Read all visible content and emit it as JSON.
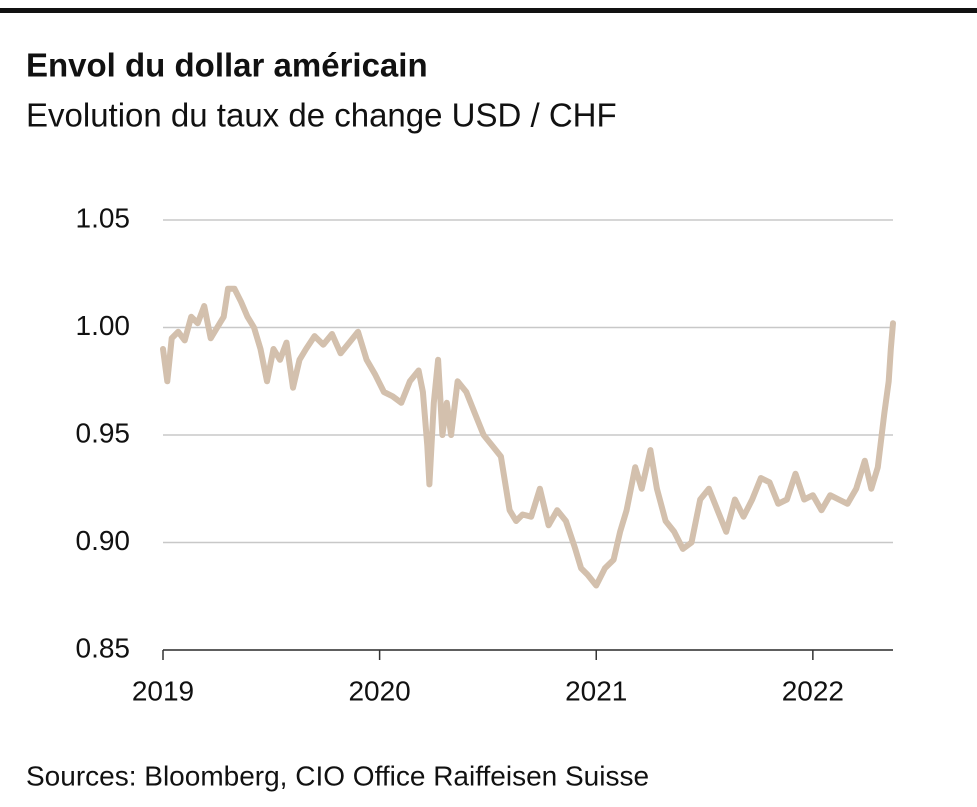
{
  "chart_data": {
    "type": "line",
    "title": "Envol du dollar américain",
    "subtitle": "Evolution du taux de change USD / CHF",
    "source": "Sources: Bloomberg, CIO Office Raiffeisen Suisse",
    "color": "#d3c0ad",
    "grid": true,
    "xlim": [
      2019,
      2022.37
    ],
    "xticks": [
      2019,
      2020,
      2021,
      2022
    ],
    "ylim": [
      0.85,
      1.05
    ],
    "yticks": [
      0.85,
      {
        "value": 0.9,
        "label": "0.90"
      },
      0.95,
      {
        "value": 1,
        "label": "1.00"
      },
      1.05
    ],
    "x": [
      2019.0,
      2019.02,
      2019.04,
      2019.07,
      2019.1,
      2019.13,
      2019.16,
      2019.19,
      2019.22,
      2019.25,
      2019.28,
      2019.3,
      2019.33,
      2019.36,
      2019.39,
      2019.42,
      2019.45,
      2019.48,
      2019.51,
      2019.54,
      2019.57,
      2019.6,
      2019.63,
      2019.66,
      2019.7,
      2019.74,
      2019.78,
      2019.82,
      2019.86,
      2019.9,
      2019.94,
      2019.98,
      2020.02,
      2020.06,
      2020.1,
      2020.14,
      2020.18,
      2020.2,
      2020.22,
      2020.23,
      2020.25,
      2020.27,
      2020.29,
      2020.31,
      2020.33,
      2020.36,
      2020.4,
      2020.44,
      2020.48,
      2020.52,
      2020.56,
      2020.6,
      2020.63,
      2020.66,
      2020.7,
      2020.74,
      2020.78,
      2020.82,
      2020.86,
      2020.9,
      2020.93,
      2020.96,
      2021.0,
      2021.04,
      2021.08,
      2021.11,
      2021.14,
      2021.18,
      2021.21,
      2021.25,
      2021.28,
      2021.32,
      2021.36,
      2021.4,
      2021.44,
      2021.48,
      2021.52,
      2021.56,
      2021.6,
      2021.64,
      2021.68,
      2021.72,
      2021.76,
      2021.8,
      2021.84,
      2021.88,
      2021.92,
      2021.96,
      2022.0,
      2022.04,
      2022.08,
      2022.12,
      2022.16,
      2022.2,
      2022.24,
      2022.27,
      2022.3,
      2022.33,
      2022.35,
      2022.36,
      2022.37
    ],
    "values": [
      0.99,
      0.975,
      0.995,
      0.998,
      0.994,
      1.005,
      1.002,
      1.01,
      0.995,
      1.0,
      1.005,
      1.018,
      1.018,
      1.012,
      1.005,
      1.0,
      0.99,
      0.975,
      0.99,
      0.985,
      0.993,
      0.972,
      0.985,
      0.99,
      0.996,
      0.992,
      0.997,
      0.988,
      0.993,
      0.998,
      0.985,
      0.978,
      0.97,
      0.968,
      0.965,
      0.975,
      0.98,
      0.97,
      0.945,
      0.927,
      0.965,
      0.985,
      0.95,
      0.965,
      0.95,
      0.975,
      0.97,
      0.96,
      0.95,
      0.945,
      0.94,
      0.915,
      0.91,
      0.913,
      0.912,
      0.925,
      0.908,
      0.915,
      0.91,
      0.898,
      0.888,
      0.885,
      0.88,
      0.888,
      0.892,
      0.905,
      0.915,
      0.935,
      0.925,
      0.943,
      0.925,
      0.91,
      0.905,
      0.897,
      0.9,
      0.92,
      0.925,
      0.915,
      0.905,
      0.92,
      0.912,
      0.92,
      0.93,
      0.928,
      0.918,
      0.92,
      0.932,
      0.92,
      0.922,
      0.915,
      0.922,
      0.92,
      0.918,
      0.925,
      0.938,
      0.925,
      0.935,
      0.96,
      0.975,
      0.99,
      1.002
    ]
  }
}
